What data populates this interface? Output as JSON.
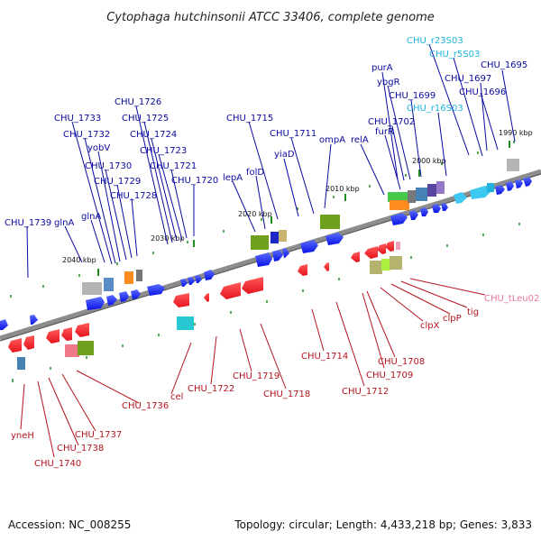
{
  "header": {
    "title": "Cytophaga hutchinsonii ATCC 33406, complete genome"
  },
  "footer": {
    "accession": "Accession: NC_008255",
    "summary": "Topology: circular; Length: 4,433,218 bp; Genes: 3,833"
  },
  "colors": {
    "forward_gene": "#0a14e6",
    "reverse_gene": "#e6141e",
    "forward_label": "#0a0aa0",
    "reverse_label": "#b4141e",
    "rrna_label": "#1eb4dc",
    "trna_label": "#e678a0",
    "backbone": "#8c8c8c",
    "tick": "#1e8c1e"
  },
  "scale": [
    {
      "text": "2040 kbp",
      "kbp": 2040
    },
    {
      "text": "2030 kbp",
      "kbp": 2030
    },
    {
      "text": "2020 kbp",
      "kbp": 2020
    },
    {
      "text": "2010 kbp",
      "kbp": 2010
    },
    {
      "text": "2000 kbp",
      "kbp": 2000
    },
    {
      "text": "1990 kbp",
      "kbp": 1990
    }
  ],
  "forward_labels": [
    "CHU_1739",
    "glnA",
    "glnA",
    "CHU_1733",
    "CHU_1732",
    "yobV",
    "CHU_1730",
    "CHU_1729",
    "CHU_1728",
    "CHU_1726",
    "CHU_1725",
    "CHU_1724",
    "CHU_1723",
    "CHU_1721",
    "CHU_1720",
    "lepA",
    "folD",
    "CHU_1715",
    "yiaD",
    "CHU_1711",
    "ompA",
    "relA",
    "furR",
    "CHU_1702",
    "purA",
    "ybgR",
    "CHU_1699",
    "CHU_r16S03",
    "CHU_r23S03",
    "CHU_r5S03",
    "CHU_1697",
    "CHU_1696",
    "CHU_1695"
  ],
  "reverse_labels": [
    "yneH",
    "CHU_1740",
    "CHU_1738",
    "CHU_1737",
    "CHU_1736",
    "cel",
    "CHU_1722",
    "CHU_1719",
    "CHU_1718",
    "CHU_1714",
    "CHU_1712",
    "CHU_1709",
    "CHU_1708",
    "clpX",
    "clpP",
    "tig",
    "CHU_tLeu02"
  ]
}
